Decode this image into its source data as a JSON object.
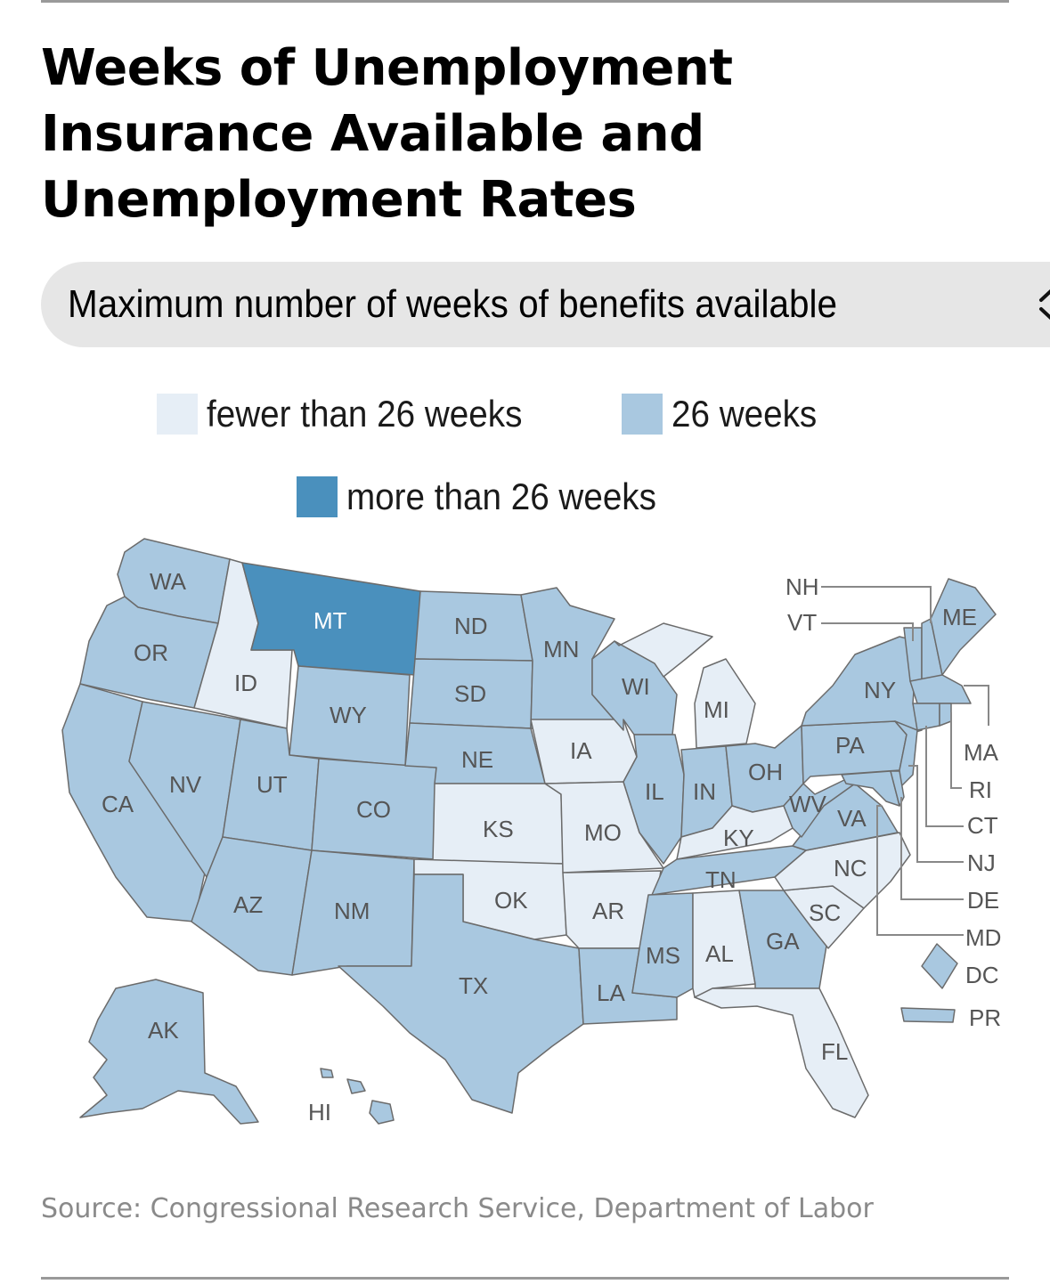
{
  "title": {
    "line1": "Weeks of Unemployment",
    "line2": "Insurance Available and",
    "line3": "Unemployment Rates"
  },
  "selector": {
    "label": "Maximum number of weeks of benefits available",
    "icon": "chevron-up-down-icon"
  },
  "legend": [
    {
      "label": "fewer than 26 weeks",
      "color": "#e6eef6"
    },
    {
      "label": "26 weeks",
      "color": "#a9c8e0"
    },
    {
      "label": "more than 26 weeks",
      "color": "#4a90bd"
    }
  ],
  "states": {
    "WA": "26 weeks",
    "OR": "26 weeks",
    "CA": "26 weeks",
    "ID": "fewer than 26 weeks",
    "NV": "26 weeks",
    "MT": "more than 26 weeks",
    "WY": "26 weeks",
    "UT": "26 weeks",
    "AZ": "26 weeks",
    "CO": "26 weeks",
    "NM": "26 weeks",
    "ND": "26 weeks",
    "SD": "26 weeks",
    "NE": "26 weeks",
    "KS": "fewer than 26 weeks",
    "OK": "fewer than 26 weeks",
    "TX": "26 weeks",
    "MN": "26 weeks",
    "IA": "fewer than 26 weeks",
    "MO": "fewer than 26 weeks",
    "AR": "fewer than 26 weeks",
    "LA": "26 weeks",
    "WI": "26 weeks",
    "IL": "26 weeks",
    "MI": "fewer than 26 weeks",
    "IN": "26 weeks",
    "OH": "26 weeks",
    "KY": "fewer than 26 weeks",
    "TN": "26 weeks",
    "MS": "26 weeks",
    "AL": "fewer than 26 weeks",
    "GA": "26 weeks",
    "FL": "fewer than 26 weeks",
    "SC": "fewer than 26 weeks",
    "NC": "fewer than 26 weeks",
    "VA": "26 weeks",
    "WV": "26 weeks",
    "PA": "26 weeks",
    "NY": "26 weeks",
    "ME": "26 weeks",
    "NH": "26 weeks",
    "VT": "26 weeks",
    "MA": "26 weeks",
    "RI": "26 weeks",
    "CT": "26 weeks",
    "NJ": "26 weeks",
    "DE": "26 weeks",
    "MD": "26 weeks",
    "DC": "26 weeks",
    "PR": "26 weeks",
    "AK": "26 weeks",
    "HI": "26 weeks"
  },
  "source": "Source: Congressional Research Service, Department of Labor"
}
